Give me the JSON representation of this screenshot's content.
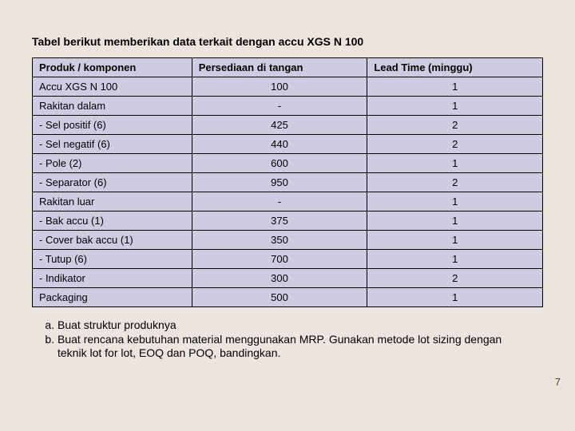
{
  "intro": "Tabel berikut memberikan data terkait dengan accu XGS N 100",
  "table": {
    "headers": {
      "produk": "Produk / komponen",
      "persediaan": "Persediaan di tangan",
      "lead": "Lead Time (minggu)"
    },
    "rows": [
      {
        "produk": "Accu XGS N 100",
        "persediaan": "100",
        "lead": "1"
      },
      {
        "produk": "Rakitan dalam",
        "persediaan": "-",
        "lead": "1"
      },
      {
        "produk": "- Sel positif (6)",
        "persediaan": "425",
        "lead": "2"
      },
      {
        "produk": "- Sel negatif (6)",
        "persediaan": "440",
        "lead": "2"
      },
      {
        "produk": "- Pole (2)",
        "persediaan": "600",
        "lead": "1"
      },
      {
        "produk": "- Separator (6)",
        "persediaan": "950",
        "lead": "2"
      },
      {
        "produk": "Rakitan luar",
        "persediaan": "-",
        "lead": "1"
      },
      {
        "produk": "- Bak accu (1)",
        "persediaan": "375",
        "lead": "1"
      },
      {
        "produk": "- Cover bak accu (1)",
        "persediaan": "350",
        "lead": "1"
      },
      {
        "produk": "- Tutup (6)",
        "persediaan": "700",
        "lead": "1"
      },
      {
        "produk": "- Indikator",
        "persediaan": "300",
        "lead": "2"
      },
      {
        "produk": "Packaging",
        "persediaan": "500",
        "lead": "1"
      }
    ]
  },
  "tasks": {
    "a": "Buat struktur produknya",
    "b": "Buat rencana kebutuhan material menggunakan MRP. Gunakan metode lot sizing  dengan teknik lot for lot, EOQ dan POQ, bandingkan."
  },
  "page_number": "7"
}
